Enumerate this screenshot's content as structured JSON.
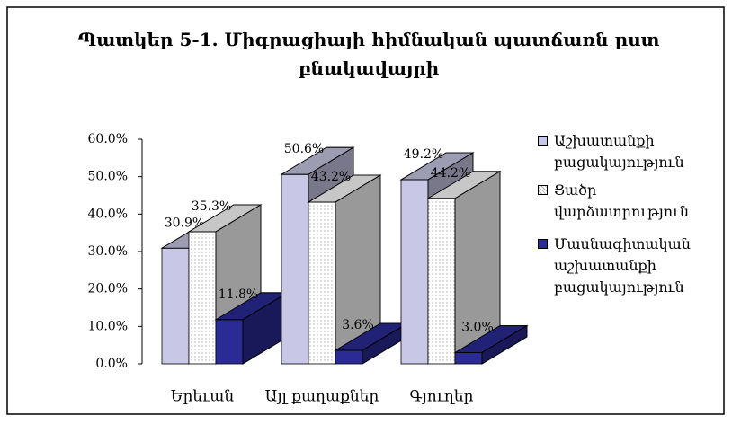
{
  "chart_data": {
    "type": "bar3d",
    "title": "Պատկեր 5-1. Միգրացիայի հիմնական պատճառն ըստ բնակավայրի",
    "categories": [
      "Երեւան",
      "Այլ քաղաքներ",
      "Գյուղեր"
    ],
    "series": [
      {
        "name": "Աշխատանքի բացակայություն",
        "color": "#c8c8e6",
        "values": [
          30.9,
          50.6,
          49.2
        ],
        "value_labels": [
          "30.9%",
          "50.6%",
          "49.2%"
        ]
      },
      {
        "name": "Ցածր վարձատրություն",
        "color": "#ffffff",
        "values": [
          35.3,
          43.2,
          44.2
        ],
        "value_labels": [
          "35.3%",
          "43.2%",
          "44.2%"
        ]
      },
      {
        "name": "Մասնագիտական աշխատանքի բացակայություն",
        "color": "#2b2b96",
        "values": [
          11.8,
          3.6,
          3.0
        ],
        "value_labels": [
          "11.8%",
          "3.6%",
          "3.0%"
        ]
      }
    ],
    "ylim": [
      0,
      60
    ],
    "yticks": [
      {
        "value": 0,
        "label": "0.0%"
      },
      {
        "value": 10,
        "label": "10.0%"
      },
      {
        "value": 20,
        "label": "20.0%"
      },
      {
        "value": 30,
        "label": "30.0%"
      },
      {
        "value": 40,
        "label": "40.0%"
      },
      {
        "value": 50,
        "label": "50.0%"
      },
      {
        "value": 60,
        "label": "60.0%"
      }
    ],
    "legend": "right"
  }
}
